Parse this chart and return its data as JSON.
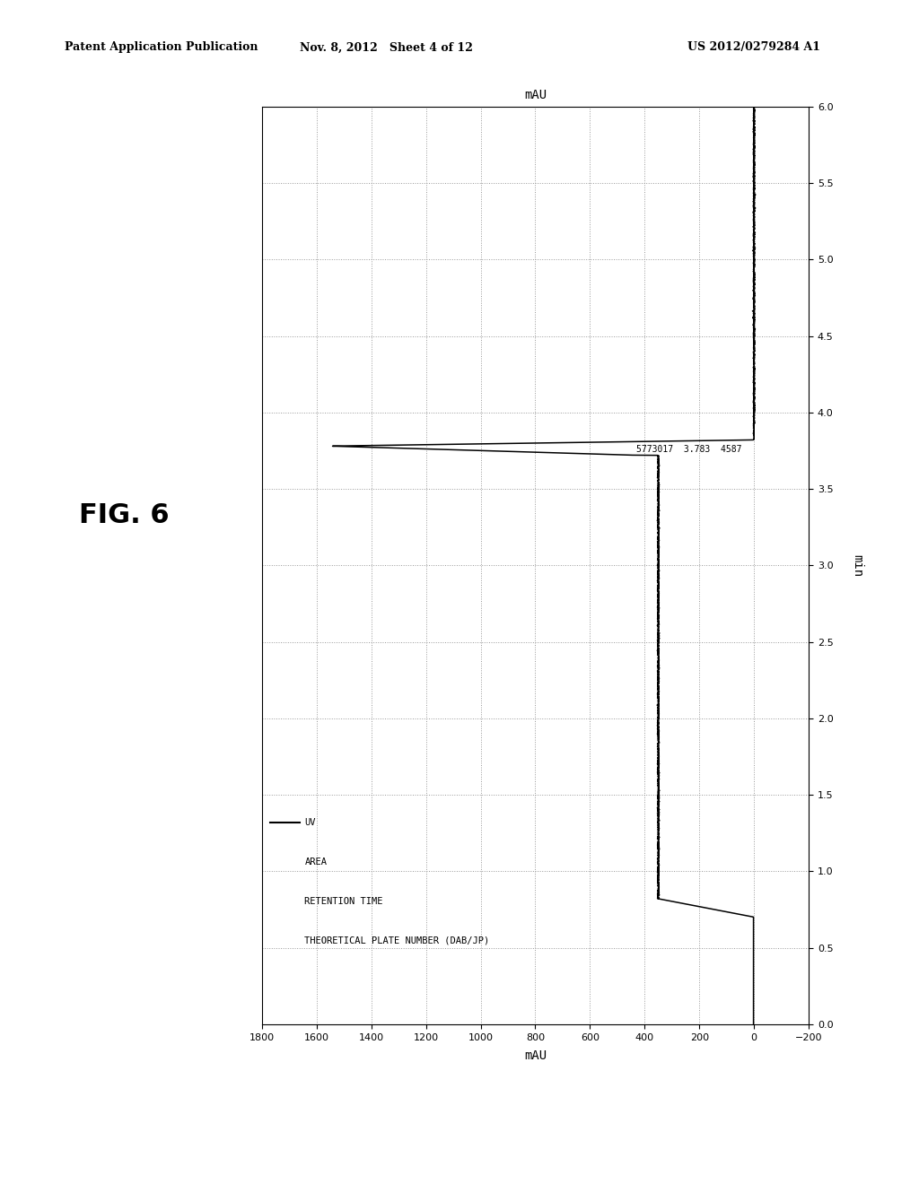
{
  "header_left": "Patent Application Publication",
  "header_center": "Nov. 8, 2012   Sheet 4 of 12",
  "header_right": "US 2012/0279284 A1",
  "fig_label": "FIG. 6",
  "mau_label": "mAU",
  "time_label": "min",
  "x_lim": [
    1800,
    -200
  ],
  "y_lim": [
    0.0,
    6.0
  ],
  "x_ticks": [
    1800,
    1600,
    1400,
    1200,
    1000,
    800,
    600,
    400,
    200,
    0,
    -200
  ],
  "y_ticks": [
    0.0,
    0.5,
    1.0,
    1.5,
    2.0,
    2.5,
    3.0,
    3.5,
    4.0,
    4.5,
    5.0,
    5.5,
    6.0
  ],
  "annotation": "5773017  3.783  4587",
  "legend_uv": "UV",
  "legend_area": "AREA",
  "legend_rt": "RETENTION TIME",
  "legend_tp": "THEORETICAL PLATE NUMBER (DAB/JP)",
  "line_color": "#000000",
  "grid_color": "#999999",
  "background_color": "#ffffff",
  "baseline_mau": 350,
  "peak_time": 3.78,
  "baseline_start": 0.82,
  "baseline_end": 3.72
}
